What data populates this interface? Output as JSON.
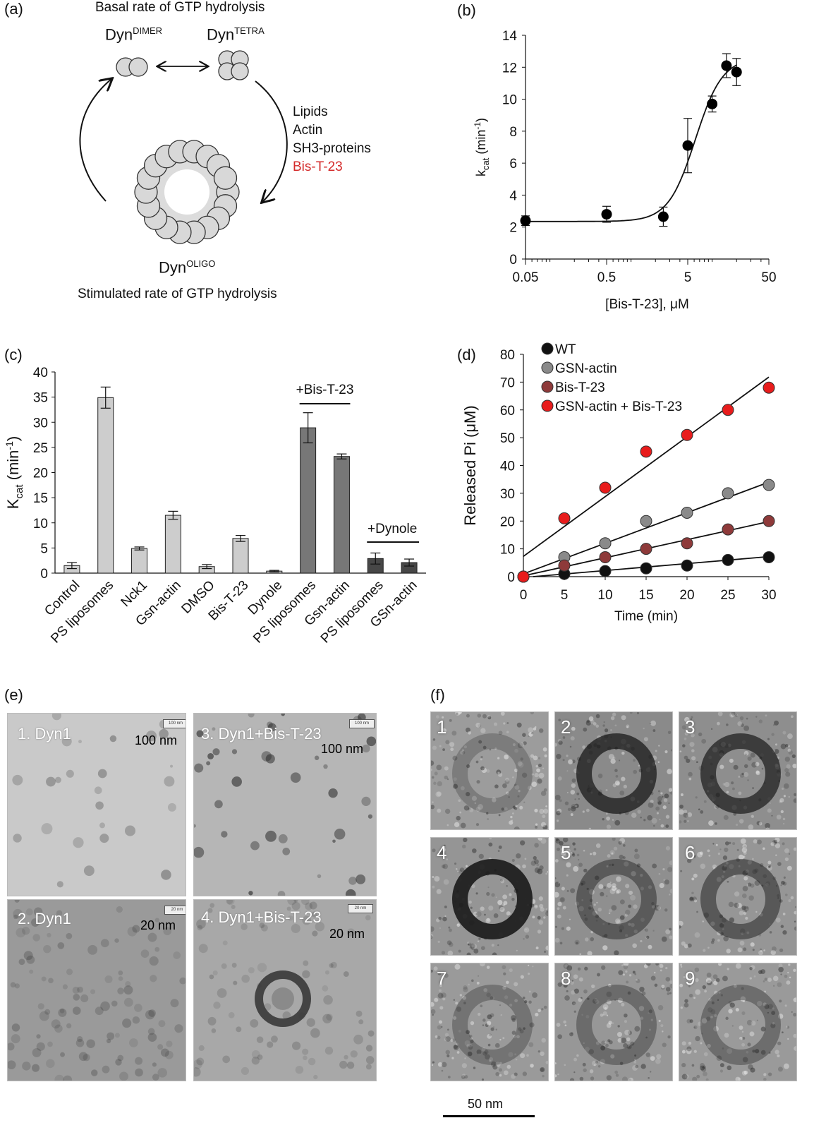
{
  "panels": {
    "a": "(a)",
    "b": "(b)",
    "c": "(c)",
    "d": "(d)",
    "e": "(e)",
    "f": "(f)"
  },
  "panel_a": {
    "top_title": "Basal rate of GTP hydrolysis",
    "dimer_base": "Dyn",
    "dimer_sup": "DIMER",
    "tetra_base": "Dyn",
    "tetra_sup": "TETRA",
    "oligo_base": "Dyn",
    "oligo_sup": "OLIGO",
    "bottom_title": "Stimulated rate of GTP hydrolysis",
    "stimuli": [
      "Lipids",
      "Actin",
      "SH3-proteins"
    ],
    "stimulus_highlight": "Bis-T-23",
    "highlight_color": "#d42a2a"
  },
  "chart_data": [
    {
      "id": "b",
      "type": "scatter",
      "xscale": "log",
      "xlabel": "[Bis-T-23], μM",
      "ylabel_base": "k",
      "ylabel_sub": "cat",
      "ylabel_unit": " (min",
      "ylabel_sup": "-1",
      "ylabel_end": ")",
      "xlim": [
        0.05,
        50
      ],
      "ylim": [
        0,
        14
      ],
      "xticks": [
        0.05,
        0.5,
        5,
        50
      ],
      "xtick_labels": [
        "0.05",
        "0.5",
        "5",
        "50"
      ],
      "yticks": [
        0,
        2,
        4,
        6,
        8,
        10,
        12,
        14
      ],
      "points": [
        {
          "x": 0.05,
          "y": 2.4,
          "err": 0.3
        },
        {
          "x": 0.5,
          "y": 2.8,
          "err": 0.5
        },
        {
          "x": 2.5,
          "y": 2.65,
          "err": 0.6
        },
        {
          "x": 5,
          "y": 7.1,
          "err": 1.7
        },
        {
          "x": 10,
          "y": 9.7,
          "err": 0.5
        },
        {
          "x": 15,
          "y": 12.1,
          "err": 0.75
        },
        {
          "x": 20,
          "y": 11.7,
          "err": 0.85
        }
      ],
      "fit": {
        "bottom": 2.35,
        "top": 12.6,
        "ec50": 6.2,
        "hill": 2.6
      }
    },
    {
      "id": "c",
      "type": "bar",
      "ylabel_base": "K",
      "ylabel_sub": "cat",
      "ylabel_unit": " (min",
      "ylabel_sup": "-1",
      "ylabel_end": ")",
      "ylim": [
        0,
        40
      ],
      "yticks": [
        0,
        5,
        10,
        15,
        20,
        25,
        30,
        35,
        40
      ],
      "categories": [
        "Control",
        "PS liposomes",
        "Nck1",
        "Gsn-actin",
        "DMSO",
        "Bis-T-23",
        "Dynole",
        "PS liposomes",
        "Gsn-actin",
        "PS liposomes",
        "GSn-actin"
      ],
      "values": [
        1.5,
        34.9,
        4.9,
        11.5,
        1.3,
        6.9,
        0.4,
        28.9,
        23.2,
        2.9,
        2.1
      ],
      "errors": [
        0.6,
        2.1,
        0.3,
        0.8,
        0.4,
        0.6,
        0.15,
        3.0,
        0.5,
        1.1,
        0.7
      ],
      "groups": [
        "light",
        "light",
        "light",
        "light",
        "light",
        "light",
        "light",
        "mid",
        "mid",
        "dark",
        "dark"
      ],
      "colors": {
        "light": "#cdcdcd",
        "mid": "#777777",
        "dark": "#474747"
      },
      "annotations": [
        "+Bis-T-23",
        "+Dynole"
      ]
    },
    {
      "id": "d",
      "type": "scatter",
      "xlabel": "Time (min)",
      "ylabel": "Released Pi (μM)",
      "xlim": [
        0,
        30
      ],
      "ylim": [
        0,
        80
      ],
      "xticks": [
        0,
        5,
        10,
        15,
        20,
        25,
        30
      ],
      "yticks": [
        0,
        10,
        20,
        30,
        40,
        50,
        60,
        70,
        80
      ],
      "series": [
        {
          "name": "WT",
          "color": "#111111",
          "x": [
            0,
            5,
            10,
            15,
            20,
            25,
            30
          ],
          "y": [
            0,
            1,
            2,
            3,
            4,
            6,
            7
          ],
          "fit": [
            -0.3,
            0.25
          ]
        },
        {
          "name": "GSN-actin",
          "color": "#8a8a8a",
          "x": [
            0,
            5,
            10,
            15,
            20,
            25,
            30
          ],
          "y": [
            0,
            7,
            12,
            20,
            23,
            30,
            33
          ],
          "fit": [
            1.0,
            1.1
          ]
        },
        {
          "name": "Bis-T-23",
          "color": "#8e3a3a",
          "x": [
            0,
            5,
            10,
            15,
            20,
            25,
            30
          ],
          "y": [
            0,
            4,
            7,
            10,
            12,
            17,
            20
          ],
          "fit": [
            0.3,
            0.65
          ]
        },
        {
          "name": "GSN-actin + Bis-T-23",
          "color": "#e81c1c",
          "x": [
            0,
            5,
            10,
            15,
            20,
            25,
            30
          ],
          "y": [
            0,
            21,
            32,
            45,
            51,
            60,
            68
          ],
          "fit": [
            7.3,
            2.15
          ]
        }
      ]
    }
  ],
  "panel_e": {
    "tiles": [
      {
        "label": "1. Dyn1",
        "scale": "100 nm",
        "box": "100 nm"
      },
      {
        "label": "3. Dyn1+Bis-T-23",
        "scale": "100 nm",
        "box": "100 nm"
      },
      {
        "label": "2. Dyn1",
        "scale": "20 nm",
        "box": "20 nm"
      },
      {
        "label": "4. Dyn1+Bis-T-23",
        "scale": "20 nm",
        "box": "20 nm"
      }
    ]
  },
  "panel_f": {
    "tiles": [
      "1",
      "2",
      "3",
      "4",
      "5",
      "6",
      "7",
      "8",
      "9"
    ],
    "scale_label": "50 nm"
  }
}
